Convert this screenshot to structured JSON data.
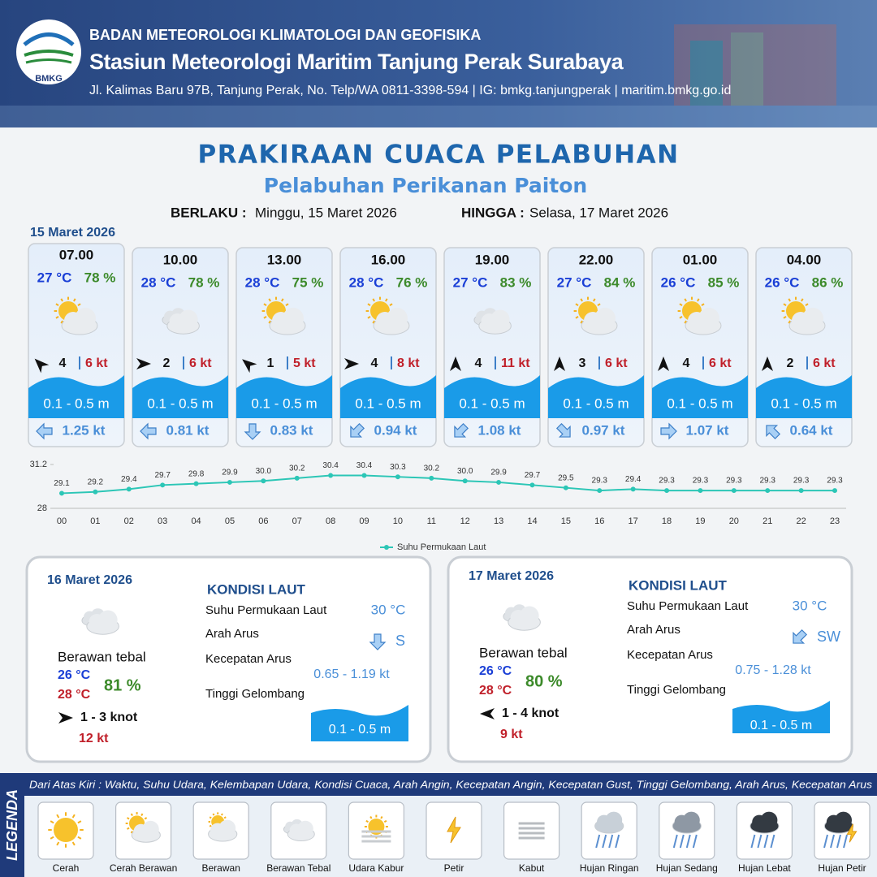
{
  "header": {
    "logo_text": "BMKG",
    "agency": "BADAN METEOROLOGI KLIMATOLOGI DAN GEOFISIKA",
    "station": "Stasiun Meteorologi Maritim Tanjung Perak Surabaya",
    "address": "Jl. Kalimas Baru 97B, Tanjung Perak, No. Telp/WA 0811-3398-594 | IG: bmkg.tanjungperak | maritim.bmkg.go.id"
  },
  "title": "PRAKIRAAN CUACA PELABUHAN",
  "subtitle": "Pelabuhan Perikanan Paiton",
  "validity": {
    "from_label": "BERLAKU :",
    "from": "Minggu, 15 Maret 2026",
    "to_label": "HINGGA :",
    "to": "Selasa, 17 Maret 2026"
  },
  "day1_date": "15 Maret 2026",
  "forecasts": [
    {
      "time": "07.00",
      "temp": "27 °C",
      "humidity": "78 %",
      "wind": "4",
      "gust": "6 kt",
      "wave": "0.1 - 0.5 m",
      "current": "1.25 kt"
    },
    {
      "time": "10.00",
      "temp": "28 °C",
      "humidity": "78 %",
      "wind": "2",
      "gust": "6 kt",
      "wave": "0.1 - 0.5 m",
      "current": "0.81 kt"
    },
    {
      "time": "13.00",
      "temp": "28 °C",
      "humidity": "75 %",
      "wind": "1",
      "gust": "5 kt",
      "wave": "0.1 - 0.5 m",
      "current": "0.83 kt"
    },
    {
      "time": "16.00",
      "temp": "28 °C",
      "humidity": "76 %",
      "wind": "4",
      "gust": "8 kt",
      "wave": "0.1 - 0.5 m",
      "current": "0.94 kt"
    },
    {
      "time": "19.00",
      "temp": "27 °C",
      "humidity": "83 %",
      "wind": "4",
      "gust": "11 kt",
      "wave": "0.1 - 0.5 m",
      "current": "1.08 kt"
    },
    {
      "time": "22.00",
      "temp": "27 °C",
      "humidity": "84 %",
      "wind": "3",
      "gust": "6 kt",
      "wave": "0.1 - 0.5 m",
      "current": "0.97 kt"
    },
    {
      "time": "01.00",
      "temp": "26 °C",
      "humidity": "85 %",
      "wind": "4",
      "gust": "6 kt",
      "wave": "0.1 - 0.5 m",
      "current": "1.07 kt"
    },
    {
      "time": "04.00",
      "temp": "26 °C",
      "humidity": "86 %",
      "wind": "2",
      "gust": "6 kt",
      "wave": "0.1 - 0.5 m",
      "current": "0.64 kt"
    }
  ],
  "chart_data": {
    "type": "line",
    "x": [
      "00",
      "01",
      "02",
      "03",
      "04",
      "05",
      "06",
      "07",
      "08",
      "09",
      "10",
      "11",
      "12",
      "13",
      "14",
      "15",
      "16",
      "17",
      "18",
      "19",
      "20",
      "21",
      "22",
      "23"
    ],
    "series": [
      {
        "name": "Suhu Permukaan Laut",
        "color": "#2cc6b6",
        "values": [
          29.1,
          29.2,
          29.4,
          29.7,
          29.8,
          29.9,
          30.0,
          30.2,
          30.4,
          30.4,
          30.3,
          30.2,
          30.0,
          29.9,
          29.7,
          29.5,
          29.3,
          29.4,
          29.3,
          29.3,
          29.3,
          29.3,
          29.3,
          29.3
        ],
        "value_labels": [
          "29.1",
          "29.2",
          "29.4",
          "29.7",
          "29.8",
          "29.9",
          "30.0",
          "30.2",
          "30.4",
          "30.4",
          "30.3",
          "30.2",
          "30.0",
          "29.9",
          "29.7",
          "29.5",
          "29.3",
          "29.4",
          "29.3",
          "29.3",
          "29.3",
          "29.3",
          "29.3",
          "29.3"
        ]
      }
    ],
    "ylim": [
      28,
      31.2
    ],
    "yticks": [
      28,
      31.2
    ]
  },
  "days": [
    {
      "date": "16 Maret 2026",
      "condition": "Berawan tebal",
      "temp_min": "26 °C",
      "temp_max": "28 °C",
      "humidity": "81 %",
      "wind": "1 - 3 knot",
      "gust": "12 kt",
      "sea_title": "KONDISI LAUT",
      "sst_label": "Suhu Permukaan Laut",
      "sst": "30 °C",
      "dir_label": "Arah Arus",
      "dir": "S",
      "speed_label": "Kecepatan Arus",
      "speed": "0.65 - 1.19 kt",
      "wave_label": "Tinggi Gelombang",
      "wave": "0.1 - 0.5 m"
    },
    {
      "date": "17 Maret 2026",
      "condition": "Berawan tebal",
      "temp_min": "26 °C",
      "temp_max": "28 °C",
      "humidity": "80 %",
      "wind": "1 - 4 knot",
      "gust": "9 kt",
      "sea_title": "KONDISI LAUT",
      "sst_label": "Suhu Permukaan Laut",
      "sst": "30 °C",
      "dir_label": "Arah Arus",
      "dir": "SW",
      "speed_label": "Kecepatan Arus",
      "speed": "0.75 - 1.28 kt",
      "wave_label": "Tinggi Gelombang",
      "wave": "0.1 - 0.5 m"
    }
  ],
  "legend": {
    "title": "LEGENDA",
    "description": "Dari Atas Kiri : Waktu, Suhu Udara, Kelembapan Udara, Kondisi Cuaca, Arah Angin, Kecepatan Angin, Kecepatan Gust, Tinggi Gelombang, Arah Arus, Kecepatan Arus",
    "items": [
      "Cerah",
      "Cerah Berawan",
      "Berawan",
      "Berawan Tebal",
      "Udara Kabur",
      "Petir",
      "Kabut",
      "Hujan Ringan",
      "Hujan Sedang",
      "Hujan Lebat",
      "Hujan Petir"
    ]
  }
}
